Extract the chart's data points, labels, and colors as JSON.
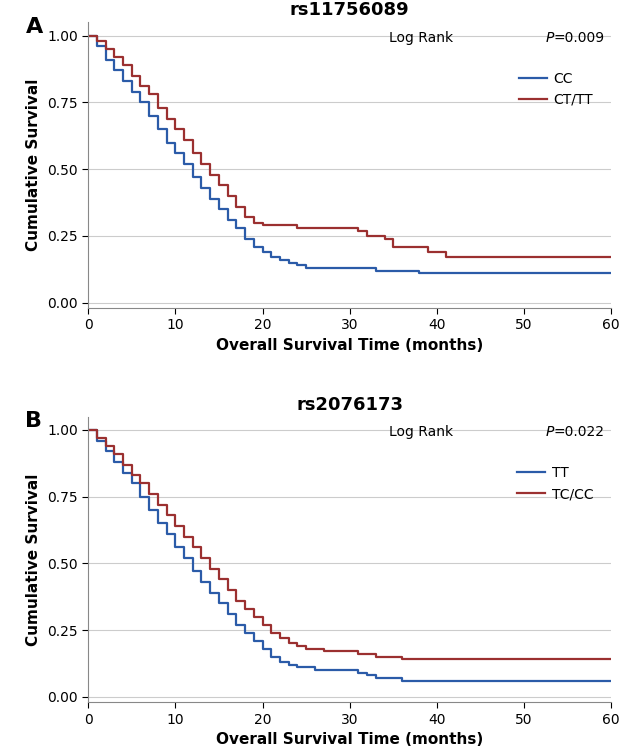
{
  "panel_A": {
    "title": "rs11756089",
    "log_rank_p": "=0.009",
    "legend_labels": [
      "CC",
      "CT/TT"
    ],
    "colors": [
      "#2B5BA8",
      "#9B3030"
    ],
    "blue_times": [
      0,
      1,
      2,
      3,
      4,
      5,
      6,
      7,
      8,
      9,
      10,
      11,
      12,
      13,
      14,
      15,
      16,
      17,
      18,
      19,
      20,
      21,
      22,
      23,
      24,
      25,
      26,
      27,
      28,
      29,
      30,
      31,
      32,
      33,
      34,
      35,
      36,
      37,
      38,
      39,
      40,
      42,
      44,
      46,
      48,
      52,
      60
    ],
    "blue_surv": [
      1.0,
      0.96,
      0.91,
      0.87,
      0.83,
      0.79,
      0.75,
      0.7,
      0.65,
      0.6,
      0.56,
      0.52,
      0.47,
      0.43,
      0.39,
      0.35,
      0.31,
      0.28,
      0.24,
      0.21,
      0.19,
      0.17,
      0.16,
      0.15,
      0.14,
      0.13,
      0.13,
      0.13,
      0.13,
      0.13,
      0.13,
      0.13,
      0.13,
      0.12,
      0.12,
      0.12,
      0.12,
      0.12,
      0.11,
      0.11,
      0.11,
      0.11,
      0.11,
      0.11,
      0.11,
      0.11,
      0.11
    ],
    "red_times": [
      0,
      1,
      2,
      3,
      4,
      5,
      6,
      7,
      8,
      9,
      10,
      11,
      12,
      13,
      14,
      15,
      16,
      17,
      18,
      19,
      20,
      21,
      22,
      23,
      24,
      25,
      26,
      27,
      28,
      29,
      30,
      31,
      32,
      33,
      34,
      35,
      36,
      37,
      38,
      39,
      40,
      41,
      42,
      44,
      46,
      48,
      52,
      60
    ],
    "red_surv": [
      1.0,
      0.98,
      0.95,
      0.92,
      0.89,
      0.85,
      0.81,
      0.78,
      0.73,
      0.69,
      0.65,
      0.61,
      0.56,
      0.52,
      0.48,
      0.44,
      0.4,
      0.36,
      0.32,
      0.3,
      0.29,
      0.29,
      0.29,
      0.29,
      0.28,
      0.28,
      0.28,
      0.28,
      0.28,
      0.28,
      0.28,
      0.27,
      0.25,
      0.25,
      0.24,
      0.21,
      0.21,
      0.21,
      0.21,
      0.19,
      0.19,
      0.17,
      0.17,
      0.17,
      0.17,
      0.17,
      0.17,
      0.17
    ]
  },
  "panel_B": {
    "title": "rs2076173",
    "log_rank_p": "=0.022",
    "legend_labels": [
      "TT",
      "TC/CC"
    ],
    "colors": [
      "#2B5BA8",
      "#9B3030"
    ],
    "blue_times": [
      0,
      1,
      2,
      3,
      4,
      5,
      6,
      7,
      8,
      9,
      10,
      11,
      12,
      13,
      14,
      15,
      16,
      17,
      18,
      19,
      20,
      21,
      22,
      23,
      24,
      25,
      26,
      27,
      28,
      29,
      30,
      31,
      32,
      33,
      34,
      35,
      36,
      37,
      38,
      39,
      40,
      42,
      44,
      46,
      50,
      53,
      60
    ],
    "blue_surv": [
      1.0,
      0.96,
      0.92,
      0.88,
      0.84,
      0.8,
      0.75,
      0.7,
      0.65,
      0.61,
      0.56,
      0.52,
      0.47,
      0.43,
      0.39,
      0.35,
      0.31,
      0.27,
      0.24,
      0.21,
      0.18,
      0.15,
      0.13,
      0.12,
      0.11,
      0.11,
      0.1,
      0.1,
      0.1,
      0.1,
      0.1,
      0.09,
      0.08,
      0.07,
      0.07,
      0.07,
      0.06,
      0.06,
      0.06,
      0.06,
      0.06,
      0.06,
      0.06,
      0.06,
      0.06,
      0.06,
      0.06
    ],
    "red_times": [
      0,
      1,
      2,
      3,
      4,
      5,
      6,
      7,
      8,
      9,
      10,
      11,
      12,
      13,
      14,
      15,
      16,
      17,
      18,
      19,
      20,
      21,
      22,
      23,
      24,
      25,
      26,
      27,
      28,
      29,
      30,
      31,
      32,
      33,
      34,
      35,
      36,
      37,
      38,
      39,
      40,
      42,
      44,
      46,
      50,
      53,
      60
    ],
    "red_surv": [
      1.0,
      0.97,
      0.94,
      0.91,
      0.87,
      0.83,
      0.8,
      0.76,
      0.72,
      0.68,
      0.64,
      0.6,
      0.56,
      0.52,
      0.48,
      0.44,
      0.4,
      0.36,
      0.33,
      0.3,
      0.27,
      0.24,
      0.22,
      0.2,
      0.19,
      0.18,
      0.18,
      0.17,
      0.17,
      0.17,
      0.17,
      0.16,
      0.16,
      0.15,
      0.15,
      0.15,
      0.14,
      0.14,
      0.14,
      0.14,
      0.14,
      0.14,
      0.14,
      0.14,
      0.14,
      0.14,
      0.14
    ]
  },
  "xlabel": "Overall Survival Time (months)",
  "ylabel": "Cumulative Survival",
  "xlim": [
    0,
    60
  ],
  "ylim": [
    -0.02,
    1.05
  ],
  "yticks": [
    0.0,
    0.25,
    0.5,
    0.75,
    1.0
  ],
  "xticks": [
    0,
    10,
    20,
    30,
    40,
    50,
    60
  ],
  "panel_labels": [
    "A",
    "B"
  ],
  "bg_color": "#FFFFFF",
  "grid_color": "#CCCCCC",
  "line_width": 1.6
}
